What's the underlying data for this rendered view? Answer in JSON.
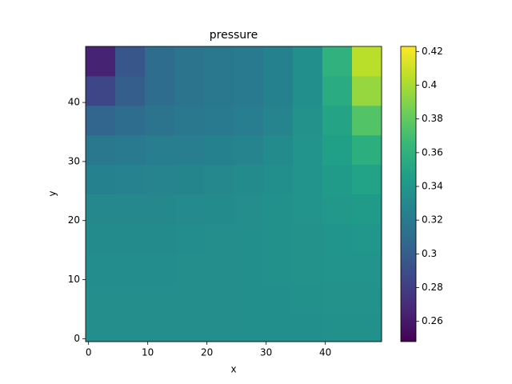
{
  "chart_data": {
    "type": "heatmap",
    "title": "pressure",
    "xlabel": "x",
    "ylabel": "y",
    "colormap": "viridis",
    "x": [
      0,
      5,
      10,
      15,
      20,
      25,
      30,
      35,
      40,
      45
    ],
    "y": [
      0,
      5,
      10,
      15,
      20,
      25,
      30,
      35,
      40,
      45
    ],
    "z": [
      [
        0.334,
        0.334,
        0.334,
        0.334,
        0.334,
        0.335,
        0.335,
        0.335,
        0.336,
        0.336
      ],
      [
        0.334,
        0.334,
        0.334,
        0.334,
        0.334,
        0.335,
        0.335,
        0.336,
        0.337,
        0.337
      ],
      [
        0.333,
        0.333,
        0.333,
        0.334,
        0.334,
        0.335,
        0.336,
        0.337,
        0.338,
        0.338
      ],
      [
        0.332,
        0.332,
        0.332,
        0.333,
        0.334,
        0.335,
        0.336,
        0.337,
        0.339,
        0.34
      ],
      [
        0.33,
        0.33,
        0.33,
        0.331,
        0.332,
        0.334,
        0.336,
        0.338,
        0.341,
        0.343
      ],
      [
        0.325,
        0.326,
        0.327,
        0.328,
        0.33,
        0.332,
        0.335,
        0.338,
        0.343,
        0.348
      ],
      [
        0.318,
        0.32,
        0.322,
        0.323,
        0.325,
        0.327,
        0.332,
        0.338,
        0.347,
        0.358
      ],
      [
        0.305,
        0.31,
        0.315,
        0.318,
        0.32,
        0.322,
        0.327,
        0.337,
        0.35,
        0.375
      ],
      [
        0.285,
        0.3,
        0.31,
        0.315,
        0.318,
        0.32,
        0.325,
        0.335,
        0.355,
        0.395
      ],
      [
        0.265,
        0.295,
        0.31,
        0.315,
        0.318,
        0.32,
        0.325,
        0.335,
        0.36,
        0.405
      ]
    ],
    "xlim": [
      -0.5,
      49.5
    ],
    "ylim": [
      -0.5,
      49.5
    ],
    "xticks": [
      0,
      10,
      20,
      30,
      40
    ],
    "yticks": [
      0,
      10,
      20,
      30,
      40
    ],
    "clim": [
      0.248,
      0.423
    ],
    "cticks": [
      0.26,
      0.28,
      0.3,
      0.32,
      0.34,
      0.36,
      0.38,
      0.4,
      0.42
    ]
  }
}
